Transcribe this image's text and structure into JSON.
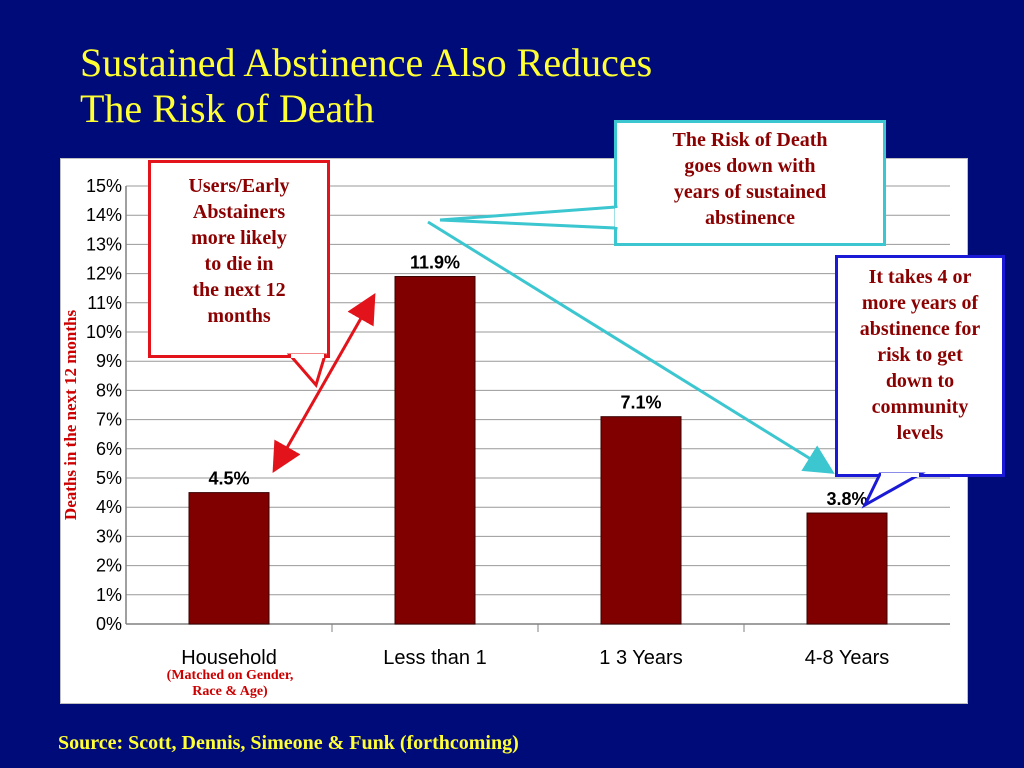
{
  "title_line1": "Sustained Abstinence Also Reduces",
  "title_line2": "The Risk of Death",
  "chart_data": {
    "type": "bar",
    "categories": [
      "Household",
      "Less than 1",
      "1 3 Years",
      "4-8 Years"
    ],
    "values": [
      4.5,
      11.9,
      7.1,
      3.8
    ],
    "value_labels": [
      "4.5%",
      "11.9%",
      "7.1%",
      "3.8%"
    ],
    "ylabel": "Deaths in the next 12 months",
    "ylim": [
      0,
      15
    ],
    "yticks": [
      "0%",
      "1%",
      "2%",
      "3%",
      "4%",
      "5%",
      "6%",
      "7%",
      "8%",
      "9%",
      "10%",
      "11%",
      "12%",
      "13%",
      "14%",
      "15%"
    ],
    "grid": true,
    "bar_color": "#800000"
  },
  "household_note_line1": "(Matched on Gender,",
  "household_note_line2": "Race & Age)",
  "callouts": {
    "users": [
      "Users/Early",
      "Abstainers",
      "more likely",
      "to die in",
      "the next 12",
      "months"
    ],
    "risk": [
      "The Risk of Death",
      "goes down with",
      "years of sustained",
      "abstinence"
    ],
    "years": [
      "It takes 4 or",
      "more years of",
      "abstinence for",
      "risk to get",
      "down to",
      "community",
      "levels"
    ]
  },
  "source": "Source: Scott, Dennis, Simeone & Funk (forthcoming)",
  "colors": {
    "background": "#000b7a",
    "title": "#ffff33",
    "red_arrow": "#e3131b",
    "cyan_arrow": "#3cc6d0",
    "blue_border": "#1a1ad6"
  }
}
